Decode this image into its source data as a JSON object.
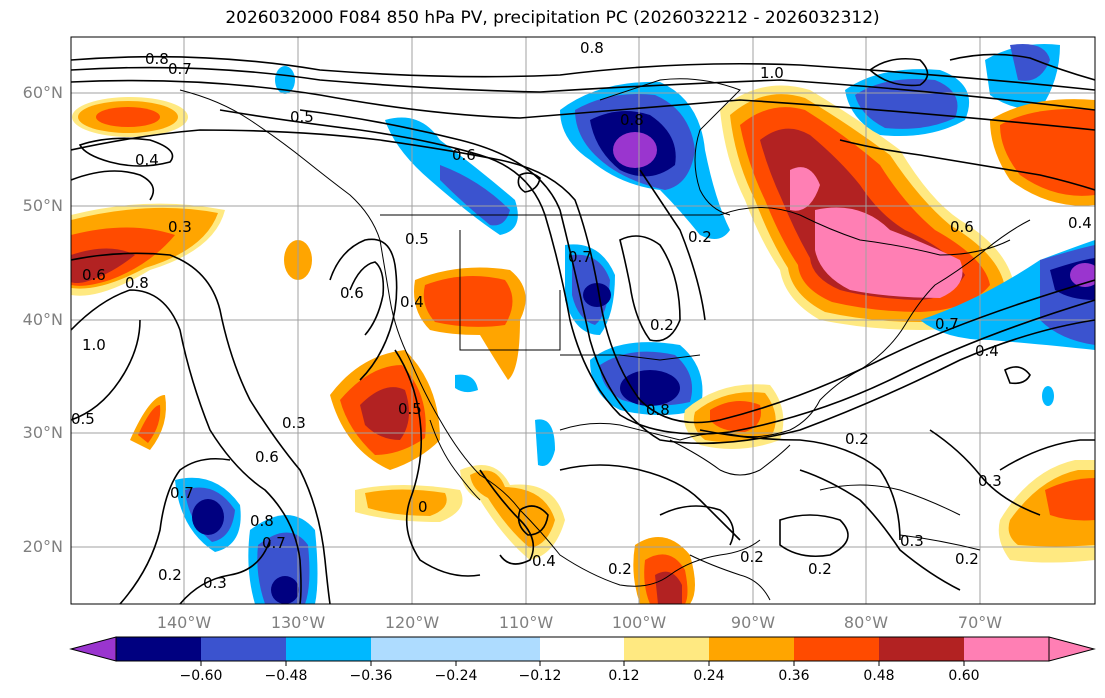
{
  "title": "2026032000 F084 850 hPa PV, precipitation PC (2026032212 - 2026032312)",
  "lat_labels": [
    "60°N",
    "50°N",
    "40°N",
    "30°N",
    "20°N"
  ],
  "lon_labels": [
    "140°W",
    "130°W",
    "120°W",
    "110°W",
    "100°W",
    "90°W",
    "80°W",
    "70°W"
  ],
  "colorbar": {
    "labels": [
      "−0.60",
      "−0.48",
      "−0.36",
      "−0.24",
      "−0.12",
      "0.12",
      "0.24",
      "0.36",
      "0.48",
      "0.60"
    ],
    "colors": [
      "#9a35cf",
      "#000080",
      "#3b53cf",
      "#00b8ff",
      "#aedcff",
      "#ffffff",
      "#ffe981",
      "#ffa500",
      "#ff4b00",
      "#b22222",
      "#ff7fb4"
    ]
  },
  "contour_labels": [
    "0.8",
    "0.7",
    "0.8",
    "1.0",
    "0.5",
    "0.4",
    "0.6",
    "0.3",
    "0.6",
    "0.8",
    "0.5",
    "0.6",
    "0.4",
    "0.2",
    "0.7",
    "0.3",
    "0.6",
    "0.7",
    "0.8",
    "0.7",
    "0.2",
    "0.3",
    "0.5",
    "0.4",
    "0.8",
    "0.2",
    "0.2",
    "0.2",
    "0.3",
    "0.2",
    "0.4",
    "0.4",
    "0.7",
    "0.6",
    "0.8",
    "0.5",
    "0.2",
    "1.0",
    "0",
    "0.3",
    "0.2"
  ]
}
